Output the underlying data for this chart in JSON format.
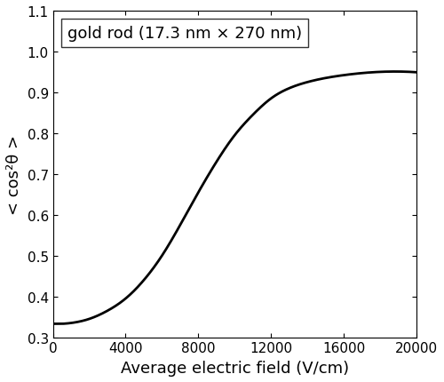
{
  "title": "",
  "xlabel": "Average electric field (V/cm)",
  "ylabel": "< cos²θ >",
  "xlim": [
    0,
    20000
  ],
  "ylim": [
    0.3,
    1.1
  ],
  "xticks": [
    0,
    4000,
    8000,
    12000,
    16000,
    20000
  ],
  "yticks": [
    0.3,
    0.4,
    0.5,
    0.6,
    0.7,
    0.8,
    0.9,
    1.0,
    1.1
  ],
  "legend_text": "gold rod (17.3 nm × 270 nm)",
  "legend_fontsize": 13,
  "axis_label_fontsize": 13,
  "tick_fontsize": 11,
  "line_color": "#000000",
  "line_width": 2.0,
  "background_color": "#ffffff",
  "curve_scale": 1800
}
